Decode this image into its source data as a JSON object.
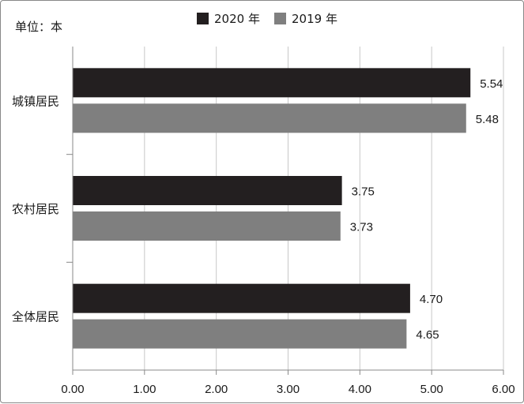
{
  "chart_data": {
    "type": "bar",
    "orientation": "horizontal",
    "unit_label": "单位：本",
    "categories": [
      "城镇居民",
      "农村居民",
      "全体居民"
    ],
    "series": [
      {
        "name": "2020 年",
        "values": [
          5.54,
          3.75,
          4.7
        ],
        "labels": [
          "5.54",
          "3.75",
          "4.70"
        ],
        "color": "#231f20"
      },
      {
        "name": "2019 年",
        "values": [
          5.48,
          3.73,
          4.65
        ],
        "labels": [
          "5.48",
          "3.73",
          "4.65"
        ],
        "color": "#7f7f7f"
      }
    ],
    "x_ticks": [
      "0.00",
      "1.00",
      "2.00",
      "3.00",
      "4.00",
      "5.00",
      "6.00"
    ],
    "xlim": [
      0,
      6
    ],
    "grid": "vertical",
    "legend_position": "top-center"
  }
}
